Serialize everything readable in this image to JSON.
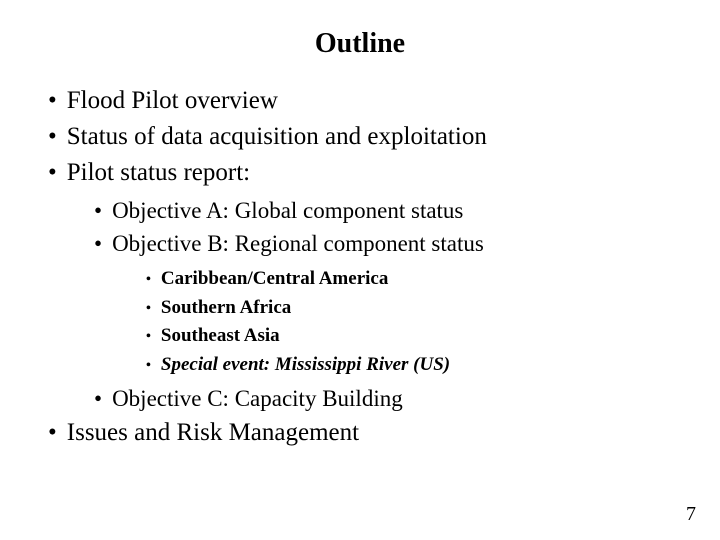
{
  "title": "Outline",
  "page_number": "7",
  "colors": {
    "background": "#ffffff",
    "text": "#000000"
  },
  "typography": {
    "family": "Times New Roman",
    "title_size_pt": 28,
    "lvl1_size_pt": 25,
    "lvl2_size_pt": 23,
    "lvl3_size_pt": 19
  },
  "items": {
    "0": "Flood Pilot overview",
    "1": "Status of data acquisition and exploitation",
    "2": "Pilot status report:",
    "2_sub": {
      "0": "Objective A: Global component status",
      "1": "Objective B: Regional component status",
      "1_sub": {
        "0": "Caribbean/Central America",
        "1": "Southern Africa",
        "2": "Southeast Asia",
        "3": "Special event: Mississippi River (US)"
      },
      "2": "Objective C: Capacity Building"
    },
    "3": "Issues and Risk Management"
  }
}
